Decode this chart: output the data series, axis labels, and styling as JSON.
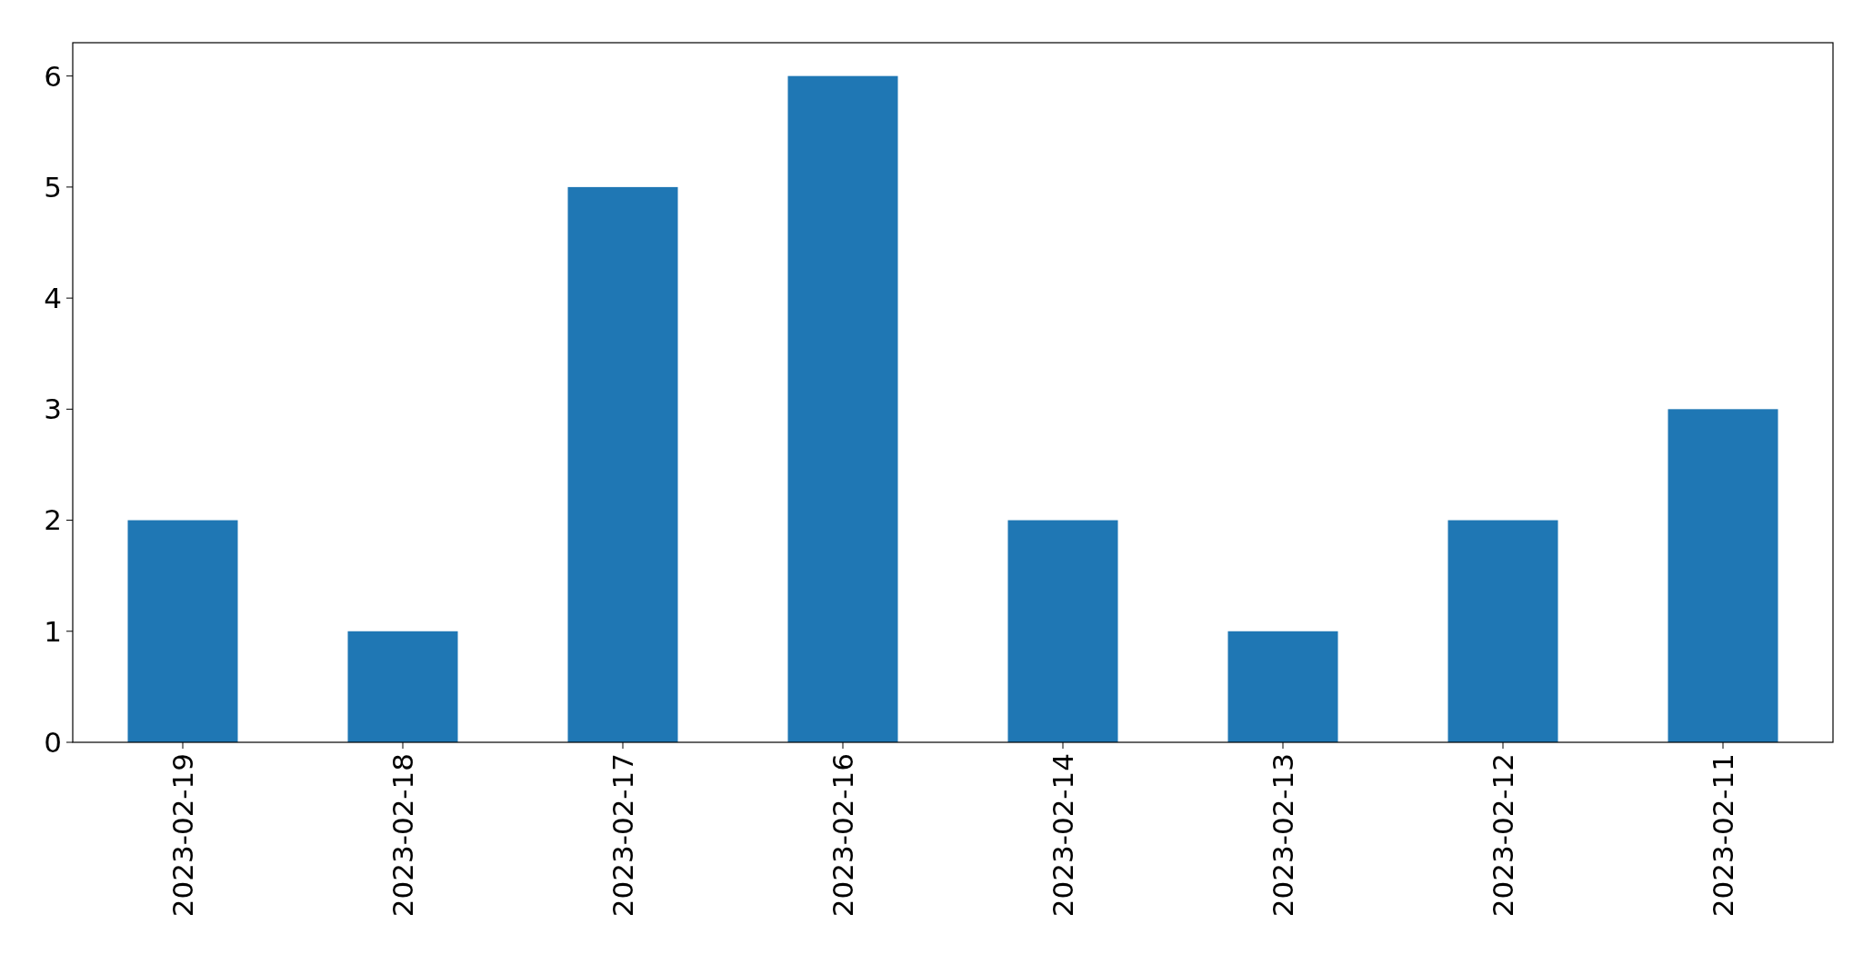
{
  "chart_data": {
    "type": "bar",
    "categories": [
      "2023-02-19",
      "2023-02-18",
      "2023-02-17",
      "2023-02-16",
      "2023-02-14",
      "2023-02-13",
      "2023-02-12",
      "2023-02-11"
    ],
    "values": [
      2,
      1,
      5,
      6,
      2,
      1,
      2,
      3
    ],
    "color": "#1f77b4",
    "ylim": [
      0,
      6.3
    ],
    "yticks": [
      0,
      1,
      2,
      3,
      4,
      5,
      6
    ],
    "grid": false
  }
}
